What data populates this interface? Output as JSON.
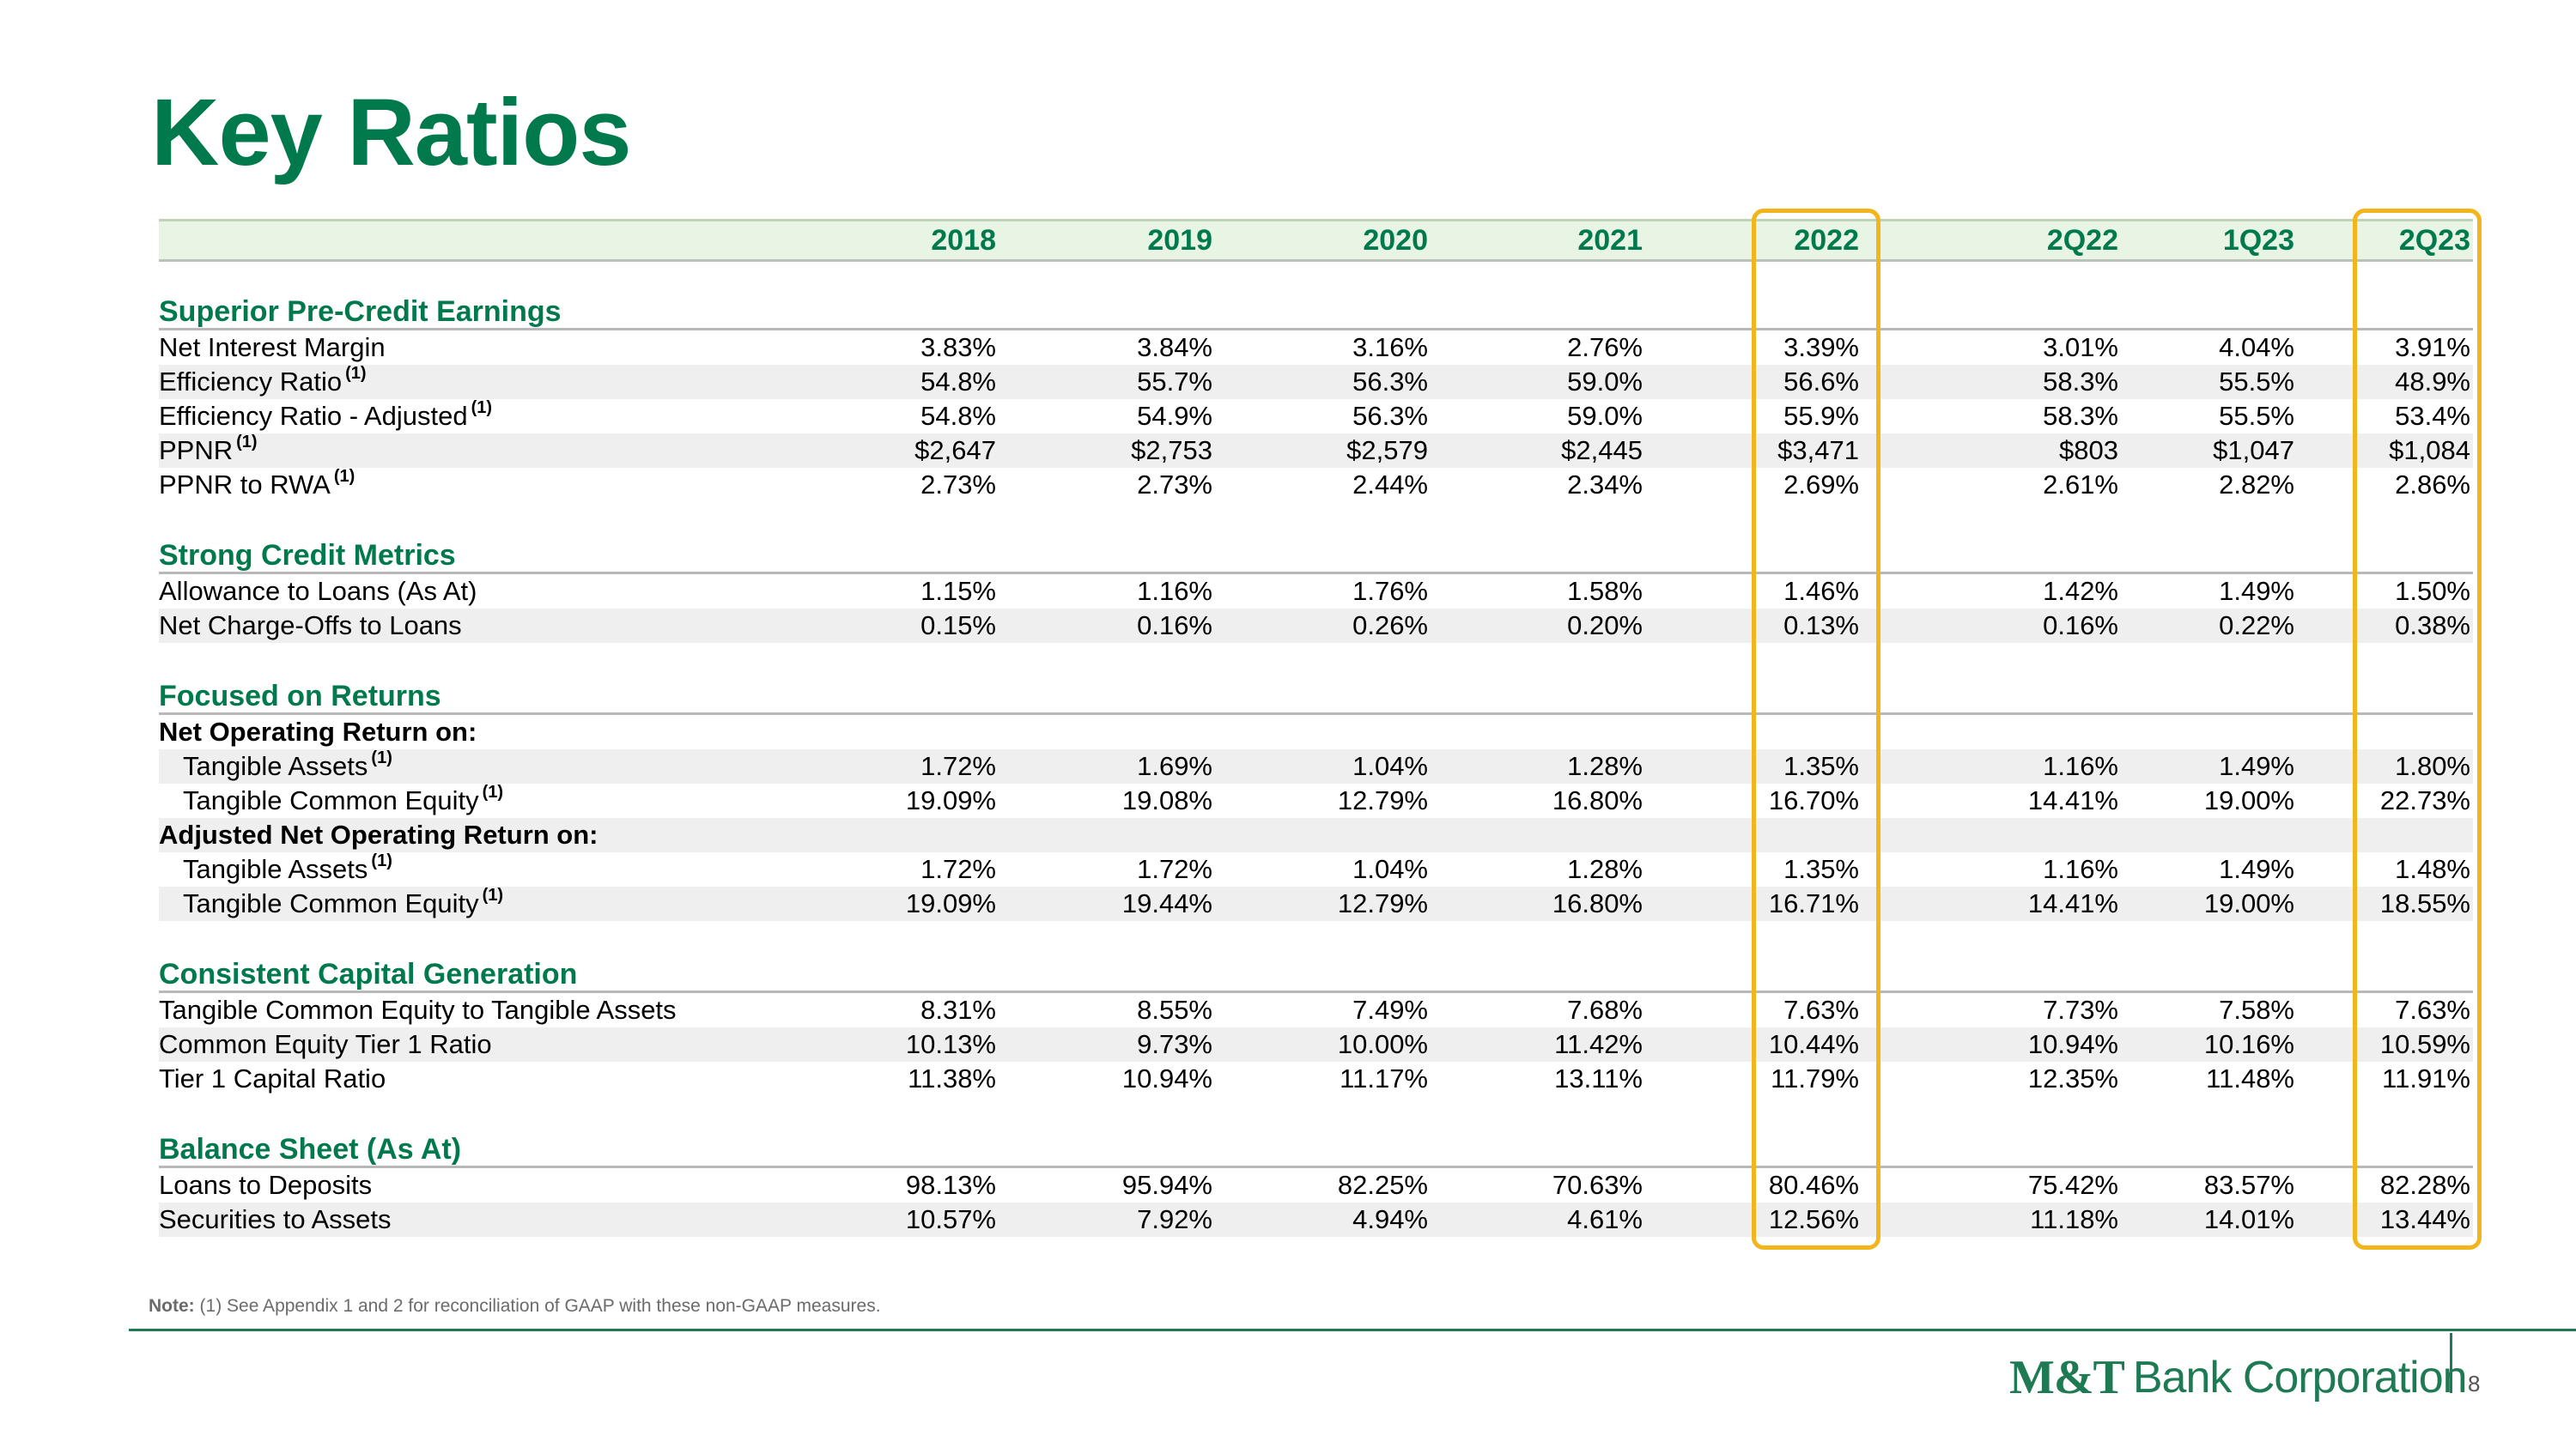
{
  "title": "Key Ratios",
  "columns": [
    "2018",
    "2019",
    "2020",
    "2021",
    "2022",
    "2Q22",
    "1Q23",
    "2Q23"
  ],
  "sections": [
    {
      "title": "Superior Pre-Credit Earnings",
      "rows": [
        {
          "label": "Net Interest Margin",
          "fn": "",
          "values": [
            "3.83%",
            "3.84%",
            "3.16%",
            "2.76%",
            "3.39%",
            "3.01%",
            "4.04%",
            "3.91%"
          ]
        },
        {
          "label": "Efficiency Ratio",
          "fn": "(1)",
          "values": [
            "54.8%",
            "55.7%",
            "56.3%",
            "59.0%",
            "56.6%",
            "58.3%",
            "55.5%",
            "48.9%"
          ]
        },
        {
          "label": "Efficiency Ratio - Adjusted",
          "fn": "(1)",
          "values": [
            "54.8%",
            "54.9%",
            "56.3%",
            "59.0%",
            "55.9%",
            "58.3%",
            "55.5%",
            "53.4%"
          ]
        },
        {
          "label": "PPNR",
          "fn": "(1)",
          "values": [
            "$2,647",
            "$2,753",
            "$2,579",
            "$2,445",
            "$3,471",
            "$803",
            "$1,047",
            "$1,084"
          ]
        },
        {
          "label": "PPNR to RWA",
          "fn": "(1)",
          "values": [
            "2.73%",
            "2.73%",
            "2.44%",
            "2.34%",
            "2.69%",
            "2.61%",
            "2.82%",
            "2.86%"
          ]
        }
      ]
    },
    {
      "title": "Strong Credit Metrics",
      "rows": [
        {
          "label": "Allowance to Loans (As At)",
          "fn": "",
          "values": [
            "1.15%",
            "1.16%",
            "1.76%",
            "1.58%",
            "1.46%",
            "1.42%",
            "1.49%",
            "1.50%"
          ]
        },
        {
          "label": "Net Charge-Offs to Loans",
          "fn": "",
          "values": [
            "0.15%",
            "0.16%",
            "0.26%",
            "0.20%",
            "0.13%",
            "0.16%",
            "0.22%",
            "0.38%"
          ]
        }
      ]
    },
    {
      "title": "Focused on Returns",
      "rows": [
        {
          "label": "Net Operating Return on:",
          "fn": "",
          "bold": true,
          "values": [
            "",
            "",
            "",
            "",
            "",
            "",
            "",
            ""
          ]
        },
        {
          "label": "Tangible Assets",
          "fn": "(1)",
          "indent": true,
          "values": [
            "1.72%",
            "1.69%",
            "1.04%",
            "1.28%",
            "1.35%",
            "1.16%",
            "1.49%",
            "1.80%"
          ]
        },
        {
          "label": "Tangible Common Equity",
          "fn": "(1)",
          "indent": true,
          "values": [
            "19.09%",
            "19.08%",
            "12.79%",
            "16.80%",
            "16.70%",
            "14.41%",
            "19.00%",
            "22.73%"
          ]
        },
        {
          "label": "Adjusted Net Operating Return on:",
          "fn": "",
          "bold": true,
          "values": [
            "",
            "",
            "",
            "",
            "",
            "",
            "",
            ""
          ]
        },
        {
          "label": "Tangible Assets",
          "fn": "(1)",
          "indent": true,
          "values": [
            "1.72%",
            "1.72%",
            "1.04%",
            "1.28%",
            "1.35%",
            "1.16%",
            "1.49%",
            "1.48%"
          ]
        },
        {
          "label": "Tangible Common Equity",
          "fn": "(1)",
          "indent": true,
          "values": [
            "19.09%",
            "19.44%",
            "12.79%",
            "16.80%",
            "16.71%",
            "14.41%",
            "19.00%",
            "18.55%"
          ]
        }
      ]
    },
    {
      "title": "Consistent Capital Generation",
      "rows": [
        {
          "label": "Tangible Common Equity to Tangible Assets",
          "fn": "",
          "values": [
            "8.31%",
            "8.55%",
            "7.49%",
            "7.68%",
            "7.63%",
            "7.73%",
            "7.58%",
            "7.63%"
          ]
        },
        {
          "label": "Common Equity Tier 1 Ratio",
          "fn": "",
          "values": [
            "10.13%",
            "9.73%",
            "10.00%",
            "11.42%",
            "10.44%",
            "10.94%",
            "10.16%",
            "10.59%"
          ]
        },
        {
          "label": "Tier 1 Capital Ratio",
          "fn": "",
          "values": [
            "11.38%",
            "10.94%",
            "11.17%",
            "13.11%",
            "11.79%",
            "12.35%",
            "11.48%",
            "11.91%"
          ]
        }
      ]
    },
    {
      "title": "Balance Sheet (As At)",
      "rows": [
        {
          "label": "Loans to Deposits",
          "fn": "",
          "values": [
            "98.13%",
            "95.94%",
            "82.25%",
            "70.63%",
            "80.46%",
            "75.42%",
            "83.57%",
            "82.28%"
          ]
        },
        {
          "label": "Securities to Assets",
          "fn": "",
          "values": [
            "10.57%",
            "7.92%",
            "4.94%",
            "4.61%",
            "12.56%",
            "11.18%",
            "14.01%",
            "13.44%"
          ]
        }
      ]
    }
  ],
  "note": {
    "label": "Note:",
    "text": "(1) See Appendix 1 and 2 for reconciliation of GAAP with these non-GAAP measures."
  },
  "footer": {
    "logo_bold": "M&T",
    "logo_rest": "Bank Corporation",
    "page": "8"
  },
  "colors": {
    "green": "#007a4d",
    "highlight": "#f3b51c"
  }
}
